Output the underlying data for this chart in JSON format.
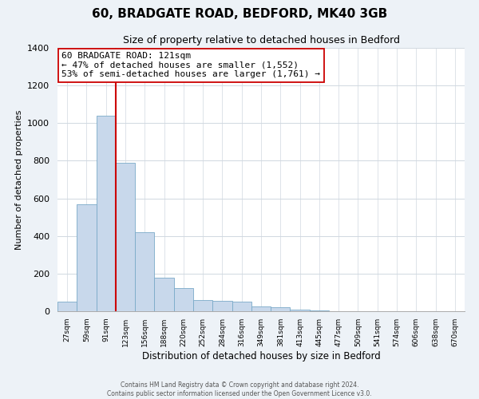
{
  "title": "60, BRADGATE ROAD, BEDFORD, MK40 3GB",
  "subtitle": "Size of property relative to detached houses in Bedford",
  "xlabel": "Distribution of detached houses by size in Bedford",
  "ylabel": "Number of detached properties",
  "bar_labels": [
    "27sqm",
    "59sqm",
    "91sqm",
    "123sqm",
    "156sqm",
    "188sqm",
    "220sqm",
    "252sqm",
    "284sqm",
    "316sqm",
    "349sqm",
    "381sqm",
    "413sqm",
    "445sqm",
    "477sqm",
    "509sqm",
    "541sqm",
    "574sqm",
    "606sqm",
    "638sqm",
    "670sqm"
  ],
  "bar_values": [
    50,
    570,
    1040,
    790,
    420,
    180,
    125,
    60,
    55,
    50,
    25,
    20,
    10,
    5,
    2,
    0,
    0,
    0,
    0,
    0,
    0
  ],
  "bar_color": "#c8d8eb",
  "bar_edge_color": "#7aaac8",
  "vline_x": 2.5,
  "vline_color": "#cc0000",
  "ylim": [
    0,
    1400
  ],
  "yticks": [
    0,
    200,
    400,
    600,
    800,
    1000,
    1200,
    1400
  ],
  "annotation_title": "60 BRADGATE ROAD: 121sqm",
  "annotation_line1": "← 47% of detached houses are smaller (1,552)",
  "annotation_line2": "53% of semi-detached houses are larger (1,761) →",
  "annotation_box_color": "#ffffff",
  "annotation_box_edge": "#cc0000",
  "footer_line1": "Contains HM Land Registry data © Crown copyright and database right 2024.",
  "footer_line2": "Contains public sector information licensed under the Open Government Licence v3.0.",
  "background_color": "#edf2f7",
  "plot_background": "#ffffff",
  "grid_color": "#d0d8e0"
}
